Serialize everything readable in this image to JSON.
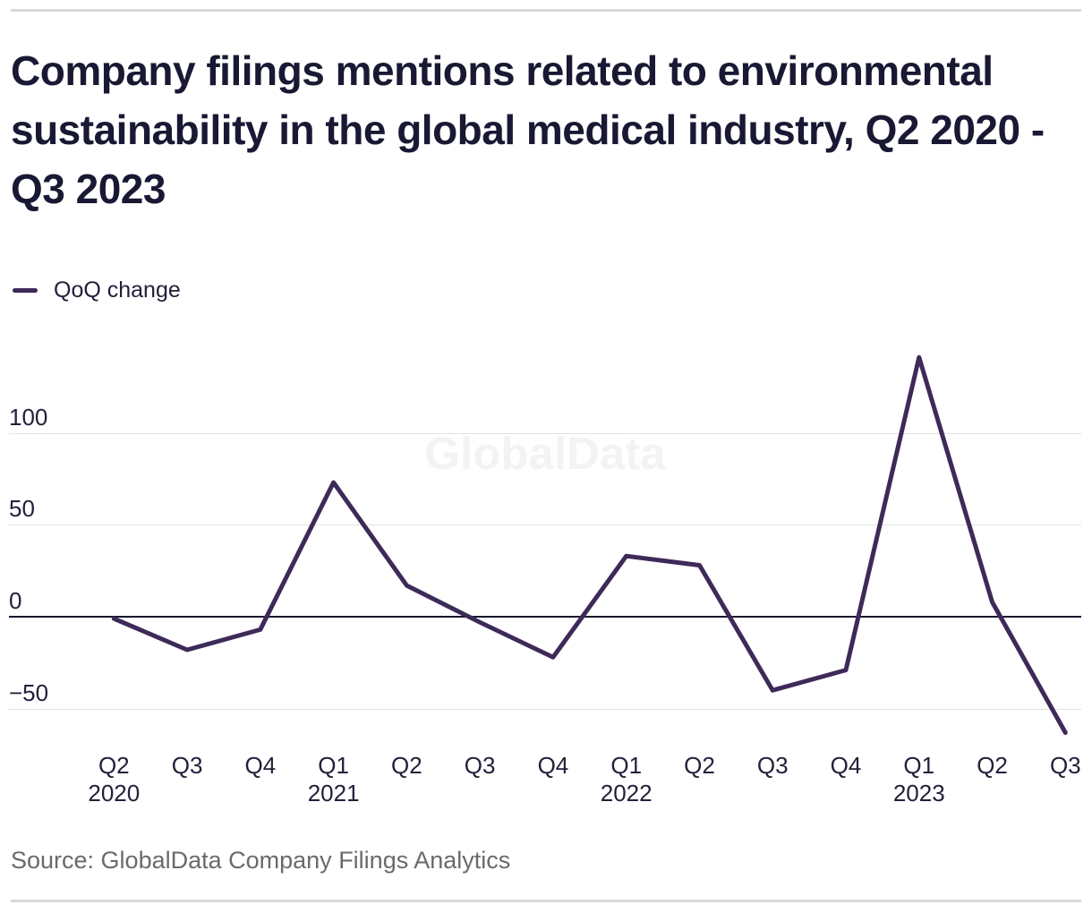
{
  "chart": {
    "title": "Company filings mentions related to environmental sustainability in the global medical industry, Q2 2020 - Q3 2023",
    "legend_label": "QoQ change",
    "watermark": "GlobalData",
    "source": "Source: GlobalData Company Filings Analytics"
  },
  "chart_data": {
    "type": "line",
    "title": "Company filings mentions related to environmental sustainability in the global medical industry, Q2 2020 - Q3 2023",
    "categories": [
      "Q2 2020",
      "Q3 2020",
      "Q4 2020",
      "Q1 2021",
      "Q2 2021",
      "Q3 2021",
      "Q4 2021",
      "Q1 2022",
      "Q2 2022",
      "Q3 2022",
      "Q4 2022",
      "Q1 2023",
      "Q2 2023",
      "Q3 2023"
    ],
    "series": [
      {
        "name": "QoQ change",
        "values": [
          -1,
          -18,
          -7,
          73,
          17,
          -3,
          -22,
          33,
          28,
          -40,
          -29,
          141,
          8,
          -63
        ]
      }
    ],
    "x_tick_quarters": [
      "Q2",
      "Q3",
      "Q4",
      "Q1",
      "Q2",
      "Q3",
      "Q4",
      "Q1",
      "Q2",
      "Q3",
      "Q4",
      "Q1",
      "Q2",
      "Q3"
    ],
    "x_year_labels": [
      {
        "text": "2020",
        "at": 0
      },
      {
        "text": "2021",
        "at": 3
      },
      {
        "text": "2022",
        "at": 7
      },
      {
        "text": "2023",
        "at": 11
      }
    ],
    "y_ticks": [
      100,
      50,
      0,
      -50
    ],
    "ylim": [
      -70,
      145
    ],
    "grid": true,
    "legend_position": "top-left",
    "colors": {
      "line": "#3e2a59",
      "zero_axis": "#17172e",
      "gridline": "#e2e2e2",
      "text_dark": "#21213b",
      "title_text": "#191934",
      "source_text": "#6a6a6a",
      "watermark": "#f3f3f3",
      "rule": "#d8d8d8"
    }
  }
}
